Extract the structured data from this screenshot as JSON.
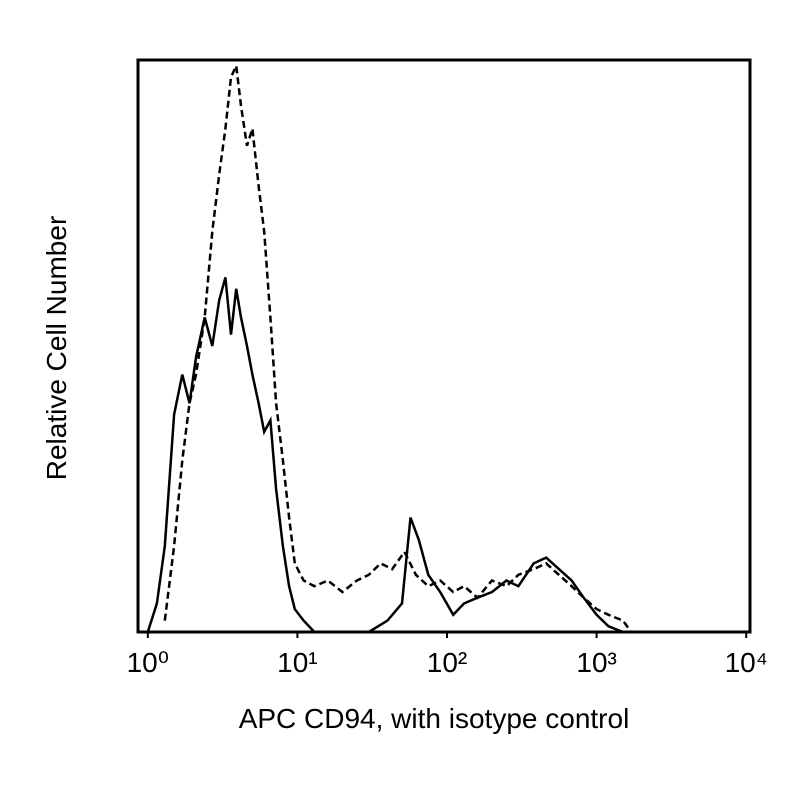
{
  "chart_data": {
    "type": "line",
    "x_label": "APC CD94, with isotype control",
    "y_label": "Relative Cell Number",
    "xscale": "log",
    "xlim": [
      0.86,
      10600
    ],
    "ylim": [
      0,
      100
    ],
    "xticks": [
      {
        "value": 1,
        "label": "10⁰"
      },
      {
        "value": 10,
        "label": "10¹"
      },
      {
        "value": 100,
        "label": "10²"
      },
      {
        "value": 1000,
        "label": "10³"
      },
      {
        "value": 10000,
        "label": "10⁴"
      }
    ],
    "series": [
      {
        "color": "#000000",
        "line_style": "dashed",
        "x": [
          1.3,
          1.5,
          1.7,
          1.9,
          2.1,
          2.4,
          2.7,
          3.0,
          3.3,
          3.6,
          3.9,
          4.2,
          4.6,
          5.0,
          5.5,
          6.0,
          6.6,
          7.2,
          8.0,
          8.8,
          9.6,
          11,
          13,
          16,
          20,
          25,
          30,
          36,
          43,
          52,
          62,
          75,
          90,
          110,
          130,
          160,
          200,
          250,
          300,
          380,
          460,
          560,
          680,
          820,
          1000,
          1200,
          1500,
          1700
        ],
        "values": [
          2,
          15,
          30,
          40,
          45,
          55,
          70,
          80,
          88,
          97,
          99,
          92,
          85,
          88,
          78,
          70,
          55,
          40,
          30,
          20,
          12,
          9,
          8,
          9,
          7,
          9,
          10,
          12,
          11,
          14,
          10,
          8,
          9,
          7,
          8,
          6,
          9,
          8,
          10,
          11,
          12,
          10,
          8,
          6,
          4,
          3,
          2,
          0
        ]
      },
      {
        "color": "#000000",
        "line_style": "solid",
        "x": [
          1.0,
          1.15,
          1.3,
          1.5,
          1.7,
          1.9,
          2.1,
          2.4,
          2.7,
          3.0,
          3.3,
          3.6,
          3.9,
          4.2,
          4.6,
          5.0,
          5.5,
          6.0,
          6.6,
          7.2,
          8.0,
          8.8,
          9.6,
          11,
          13,
          20,
          30,
          40,
          50,
          57,
          65,
          75,
          90,
          110,
          130,
          160,
          200,
          250,
          300,
          380,
          460,
          560,
          680,
          820,
          1000,
          1200,
          1500
        ],
        "values": [
          0,
          5,
          15,
          38,
          45,
          40,
          48,
          55,
          50,
          58,
          62,
          52,
          60,
          55,
          50,
          45,
          40,
          35,
          37,
          25,
          15,
          8,
          4,
          2,
          0,
          0,
          0,
          2,
          5,
          20,
          16,
          10,
          7,
          3,
          5,
          6,
          7,
          9,
          8,
          12,
          13,
          11,
          9,
          6,
          3,
          1,
          0
        ]
      }
    ]
  }
}
